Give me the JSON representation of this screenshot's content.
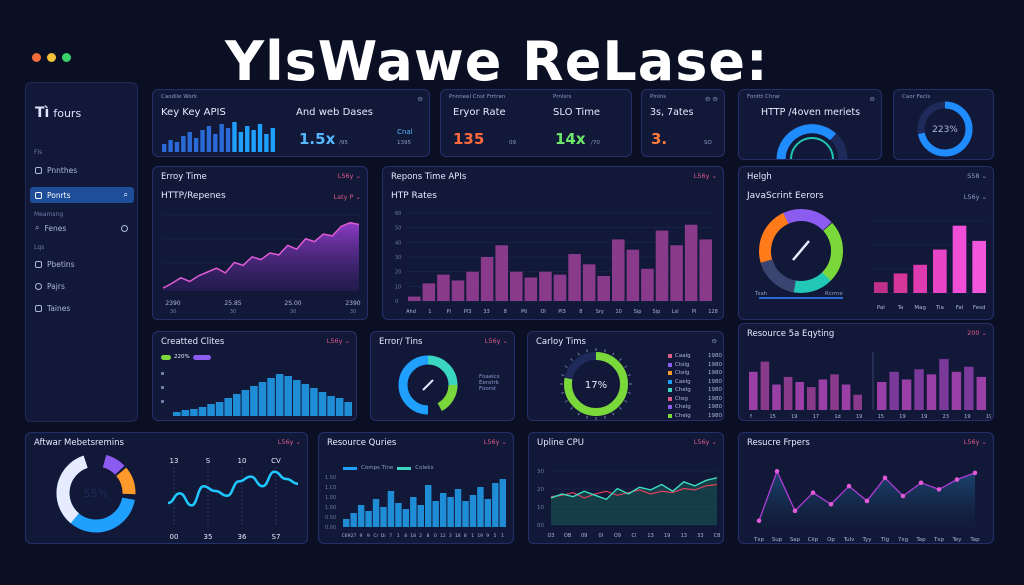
{
  "window": {
    "dot_colors": [
      "#f26b3a",
      "#f2c23a",
      "#3ad26b"
    ]
  },
  "title": "YlsWawe ReLase:",
  "sidebar": {
    "logo": "Tì",
    "logo_text": "fours",
    "items": [
      {
        "label": "Fls",
        "type": "section"
      },
      {
        "label": "Pnnthes",
        "type": "item"
      },
      {
        "label": "Ponrts",
        "type": "item",
        "active": true
      },
      {
        "label": "Meamsng",
        "type": "section"
      },
      {
        "label": "Fenes",
        "type": "item"
      },
      {
        "label": "Lqs",
        "type": "section"
      },
      {
        "label": "Pbetins",
        "type": "item"
      },
      {
        "label": "Pajrs",
        "type": "item"
      },
      {
        "label": "Taines",
        "type": "item"
      }
    ]
  },
  "kpi1": {
    "header_small": "Caodile Work",
    "left_label": "Key Key APIS",
    "right_label": "And web Dases",
    "value": "1.5x",
    "value_suffix": "/95",
    "right_small": "Cnal",
    "right_small2": "1395",
    "ctrl": "⊖"
  },
  "kpi2": {
    "header_small": "Pnnneel Cnst Frrtran",
    "header_small2": "Prnlsrs",
    "left_label": "Eryor Rate",
    "right_label": "SLO Time",
    "left_value": "135",
    "left_suffix": "09",
    "right_value": "14x",
    "right_suffix": "/70"
  },
  "kpi3": {
    "header_small": "Pinlns",
    "label": "3s, 7ates",
    "value": "3.",
    "suffix": "SO",
    "ctrl": "⊖ ⊖"
  },
  "kpi4": {
    "header_small": "Fonttt Chrar",
    "label": "HTTP /4oven meriets",
    "ctrl": "⊖"
  },
  "kpi5": {
    "header_small": "Caor Fecls",
    "value": "223%",
    "percent": 0.72
  },
  "p_error_time": {
    "title": "Erroy Time",
    "sub": "HTTP/Repenes",
    "ctrl": "L56y ⌄",
    "ctrl2": "Laty P ⌄",
    "x_labels": [
      "2390\n30",
      "25.85\n30",
      "2S.00\n30",
      "2390\n30"
    ],
    "values": [
      3,
      8,
      14,
      10,
      16,
      20,
      24,
      19,
      30,
      27,
      36,
      33,
      40,
      38,
      48,
      44,
      55,
      52,
      60,
      58,
      68,
      72,
      70
    ]
  },
  "p_response": {
    "title": "Repons Time APIs",
    "sub": "HTP Rates",
    "ctrl": "L56y ⌄",
    "y_labels": [
      "60",
      "50",
      "40",
      "30",
      "20",
      "10",
      "0"
    ],
    "x_labels": [
      "Ahd",
      "1",
      "Pl",
      "Pl3",
      "33",
      "8",
      "Ptl",
      "Ol",
      "Pl3",
      "8",
      "Sry",
      "10",
      "Sip",
      "Sip",
      "Lsl",
      "Pl",
      "128"
    ],
    "values": [
      3,
      12,
      18,
      14,
      20,
      30,
      38,
      20,
      16,
      20,
      18,
      32,
      25,
      17,
      42,
      35,
      22,
      48,
      38,
      52,
      42
    ]
  },
  "p_health": {
    "title": "Helgh",
    "sub": "JavaScrint Eerors",
    "ctrl": "S58 ⌄",
    "ctrl2": "L56y ⌄",
    "gauge_label_left": "Tsah",
    "gauge_label_right": "Rcrme",
    "x_labels": [
      "Pal",
      "Ta",
      "Mag",
      "Tia",
      "Fal",
      "Fesd"
    ],
    "values": [
      10,
      18,
      26,
      40,
      62,
      48
    ],
    "colors": [
      "#c0308a",
      "#d6359a",
      "#df3bb0",
      "#e844c6",
      "#f04ed6",
      "#f256dc"
    ]
  },
  "p_created": {
    "title": "Creatted Clites",
    "ctrl": "L56y ⌄",
    "legend": "220%",
    "values": [
      4,
      6,
      7,
      9,
      12,
      14,
      18,
      22,
      26,
      30,
      34,
      38,
      42,
      40,
      36,
      32,
      28,
      24,
      20,
      18,
      14
    ]
  },
  "p_err_tims": {
    "title": "Error/ Tins",
    "ctrl": "L56y ⌄",
    "legend": [
      "Foaelcs",
      "Eerotrk",
      "Foorst"
    ]
  },
  "p_carry": {
    "title": "Carloy Tims",
    "value": "17%",
    "percent": 0.78,
    "legend": [
      {
        "label": "Caalg",
        "value": "1980"
      },
      {
        "label": "Ctolg",
        "value": "1980"
      },
      {
        "label": "Ctelg",
        "value": "1980"
      },
      {
        "label": "Caelg",
        "value": "1980"
      },
      {
        "label": "Chelg",
        "value": "1980"
      },
      {
        "label": "Cteg",
        "value": "1980"
      },
      {
        "label": "Chelg",
        "value": "1980"
      },
      {
        "label": "Chelg",
        "value": "1980"
      }
    ],
    "ctrl": "⊖"
  },
  "p_resource_edyting": {
    "title": "Resource 5a Eqyting",
    "ctrl": "200 ⌄",
    "x_labels": [
      "f",
      "15",
      "19",
      "17",
      "1d",
      "19",
      "15",
      "19",
      "19",
      "23",
      "19",
      "19"
    ],
    "left_values": [
      30,
      38,
      20,
      26,
      22,
      18,
      24,
      28,
      20,
      12
    ],
    "right_values": [
      22,
      30,
      24,
      32,
      28,
      40,
      30,
      34,
      26
    ]
  },
  "p_aftwar": {
    "title": "Aftwar Mebetsremins",
    "ctrl": "L56y ⌄",
    "donut_value": "55%",
    "line_top_labels": [
      "13",
      "S",
      "10",
      "CV"
    ],
    "line_bottom_labels": [
      "00",
      "35",
      "36",
      "S7"
    ],
    "values": [
      20,
      28,
      18,
      34,
      30,
      26,
      38,
      42,
      34,
      46,
      40,
      36
    ]
  },
  "p_resource_quries": {
    "title": "Resource Quries",
    "ctrl": "L56y ⌄",
    "legend": [
      "Comps Tine",
      "Coleks"
    ],
    "y_labels": [
      "1.S0",
      "1.C0",
      "1.00",
      "1.00",
      "0.S0",
      "0.00"
    ],
    "x_labels": [
      "C69",
      "27",
      "9",
      "9",
      "Cr",
      "Di",
      "7",
      "1",
      "8",
      "18",
      "2",
      "8",
      "0",
      "12",
      "3",
      "18",
      "8",
      "1",
      "19",
      "9",
      "5",
      "1"
    ],
    "values": [
      8,
      14,
      22,
      16,
      28,
      20,
      36,
      24,
      18,
      30,
      22,
      42,
      26,
      34,
      30,
      38,
      26,
      32,
      40,
      28,
      44,
      48
    ]
  },
  "p_uptime": {
    "title": "Upline CPU",
    "ctrl": "L56y ⌄",
    "y_labels": [
      "30",
      "20",
      "10",
      "00"
    ],
    "x_labels": [
      "O3",
      "OB",
      "09",
      "0l",
      "O9",
      "Cl",
      "13",
      "19",
      "13",
      "33",
      "C8"
    ],
    "teal": [
      40,
      46,
      42,
      50,
      44,
      38,
      54,
      46,
      56,
      52,
      60,
      50,
      64,
      58,
      66,
      70
    ],
    "red": [
      42,
      44,
      48,
      40,
      46,
      50,
      44,
      48,
      52,
      46,
      50,
      48,
      54,
      52,
      58,
      60
    ]
  },
  "p_resource_rrpers": {
    "title": "Resucre Frpers",
    "ctrl": "L56y ⌄",
    "x_labels": [
      "Txp",
      "Sup",
      "Sap",
      "Ciip",
      "Op",
      "Tulv",
      "Tyy",
      "Tlg",
      "7xg",
      "Tap",
      "Txp",
      "Tey",
      "Tap"
    ],
    "values": [
      10,
      70,
      22,
      44,
      30,
      52,
      34,
      62,
      40,
      56,
      48,
      60,
      68
    ]
  }
}
